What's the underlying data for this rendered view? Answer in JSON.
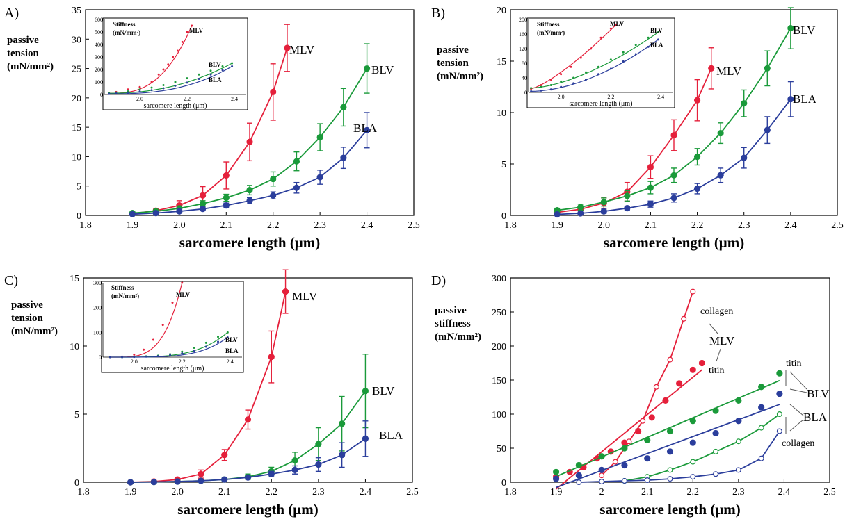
{
  "chart_data": [
    {
      "panel": "A)",
      "type": "scatter",
      "ylabel_lines": [
        "passive",
        "tension",
        "(mN/mm²)"
      ],
      "xlabel": "sarcomere length (μm)",
      "xlim": [
        1.8,
        2.5
      ],
      "ylim": [
        0,
        35
      ],
      "xticks": [
        "1.8",
        "1.9",
        "2.0",
        "2.1",
        "2.2",
        "2.3",
        "2.4",
        "2.5"
      ],
      "yticks": [
        "0",
        "5",
        "10",
        "15",
        "20",
        "25",
        "30",
        "35"
      ],
      "series": [
        {
          "name": "MLV",
          "color": "#e5203b",
          "x": [
            1.9,
            1.95,
            2.0,
            2.05,
            2.1,
            2.15,
            2.2,
            2.23
          ],
          "y": [
            0.3,
            0.8,
            1.7,
            3.4,
            6.8,
            12.5,
            21.0,
            28.5
          ],
          "err": [
            0.2,
            0.4,
            0.8,
            1.5,
            2.3,
            3.2,
            4.8,
            4.0
          ]
        },
        {
          "name": "BLV",
          "color": "#1a9a3a",
          "x": [
            1.9,
            1.95,
            2.0,
            2.05,
            2.1,
            2.15,
            2.2,
            2.25,
            2.3,
            2.35,
            2.4
          ],
          "y": [
            0.4,
            0.7,
            1.2,
            2.0,
            3.0,
            4.3,
            6.2,
            9.2,
            13.3,
            18.4,
            25.0
          ],
          "err": [
            0.2,
            0.3,
            0.4,
            0.5,
            0.6,
            0.8,
            1.2,
            1.6,
            2.3,
            3.2,
            4.2
          ]
        },
        {
          "name": "BLA",
          "color": "#2b3e9c",
          "x": [
            1.9,
            1.95,
            2.0,
            2.05,
            2.1,
            2.15,
            2.2,
            2.25,
            2.3,
            2.35,
            2.4
          ],
          "y": [
            0.2,
            0.4,
            0.7,
            1.1,
            1.7,
            2.5,
            3.4,
            4.7,
            6.5,
            9.8,
            14.5
          ],
          "err": [
            0.1,
            0.1,
            0.2,
            0.3,
            0.4,
            0.5,
            0.6,
            0.9,
            1.2,
            1.8,
            3.0
          ]
        }
      ],
      "inset": {
        "title_lines": [
          "Stiffness",
          "(mN/mm²)"
        ],
        "xlabel": "sarcomere length (μm)",
        "xlim": [
          1.85,
          2.45
        ],
        "ylim": [
          0,
          600
        ],
        "xticks": [
          "2.0",
          "2.2",
          "2.4"
        ],
        "yticks": [
          "0",
          "100",
          "200",
          "300",
          "400",
          "500",
          "600"
        ],
        "series": [
          {
            "name": "MLV",
            "color": "#e5203b",
            "fit_exp": 2.8,
            "x": [
              1.87,
              1.9,
              1.95,
              2.0,
              2.05,
              2.08,
              2.1,
              2.12,
              2.14,
              2.16,
              2.18,
              2.2,
              2.22
            ],
            "y": [
              10,
              20,
              40,
              60,
              100,
              160,
              200,
              240,
              300,
              350,
              420,
              500,
              550
            ]
          },
          {
            "name": "BLV",
            "color": "#1a9a3a",
            "fit_exp": 2.2,
            "x": [
              1.87,
              1.9,
              1.95,
              2.0,
              2.05,
              2.1,
              2.15,
              2.2,
              2.25,
              2.3,
              2.35,
              2.39
            ],
            "y": [
              10,
              15,
              25,
              40,
              55,
              75,
              100,
              130,
              160,
              190,
              225,
              250
            ]
          },
          {
            "name": "BLA",
            "color": "#2b3e9c",
            "fit_exp": 2.6,
            "x": [
              1.87,
              1.9,
              1.95,
              2.0,
              2.05,
              2.1,
              2.15,
              2.2,
              2.25,
              2.3,
              2.35,
              2.39
            ],
            "y": [
              5,
              8,
              15,
              25,
              35,
              50,
              70,
              95,
              125,
              160,
              195,
              225
            ]
          }
        ]
      }
    },
    {
      "panel": "B)",
      "type": "scatter",
      "ylabel_lines": [
        "passive",
        "tension",
        "(mN/mm²)"
      ],
      "xlabel": "sarcomere length (μm)",
      "xlim": [
        1.8,
        2.5
      ],
      "ylim": [
        0,
        20
      ],
      "xticks": [
        "1.8",
        "1.9",
        "2.0",
        "2.1",
        "2.2",
        "2.3",
        "2.4",
        "2.5"
      ],
      "yticks": [
        "0",
        "5",
        "10",
        "15",
        "20"
      ],
      "series": [
        {
          "name": "MLV",
          "color": "#e5203b",
          "x": [
            1.9,
            1.95,
            2.0,
            2.05,
            2.1,
            2.15,
            2.2,
            2.23
          ],
          "y": [
            0.3,
            0.6,
            1.2,
            2.3,
            4.7,
            7.8,
            11.2,
            14.3
          ],
          "err": [
            0.2,
            0.3,
            0.5,
            0.9,
            1.1,
            1.5,
            2.0,
            2.0
          ]
        },
        {
          "name": "BLV",
          "color": "#1a9a3a",
          "x": [
            1.9,
            1.95,
            2.0,
            2.05,
            2.1,
            2.15,
            2.2,
            2.25,
            2.3,
            2.35,
            2.4
          ],
          "y": [
            0.5,
            0.8,
            1.3,
            1.9,
            2.7,
            3.9,
            5.7,
            8.0,
            10.9,
            14.3,
            18.2
          ],
          "err": [
            0.2,
            0.3,
            0.4,
            0.5,
            0.6,
            0.7,
            0.8,
            1.0,
            1.3,
            1.7,
            2.0
          ]
        },
        {
          "name": "BLA",
          "color": "#2b3e9c",
          "x": [
            1.9,
            1.95,
            2.0,
            2.05,
            2.1,
            2.15,
            2.2,
            2.25,
            2.3,
            2.35,
            2.4
          ],
          "y": [
            0.1,
            0.2,
            0.4,
            0.7,
            1.1,
            1.7,
            2.6,
            3.9,
            5.6,
            8.3,
            11.3
          ],
          "err": [
            0.1,
            0.1,
            0.2,
            0.2,
            0.3,
            0.4,
            0.5,
            0.7,
            1.0,
            1.3,
            1.7
          ]
        }
      ],
      "inset": {
        "title_lines": [
          "Stiffness",
          "(mN/mm²)"
        ],
        "xlabel": "sarcomere length (μm)",
        "xlim": [
          1.87,
          2.45
        ],
        "ylim": [
          0,
          200
        ],
        "xticks": [
          "2.0",
          "2.2",
          "2.4"
        ],
        "yticks": [
          "0",
          "40",
          "80",
          "120",
          "160",
          "200"
        ],
        "series": [
          {
            "name": "MLV",
            "color": "#e5203b",
            "fit_exp": 1.3,
            "x": [
              1.88,
              1.92,
              1.96,
              2.0,
              2.04,
              2.08,
              2.12,
              2.16,
              2.2,
              2.22
            ],
            "y": [
              10,
              20,
              35,
              50,
              70,
              95,
              120,
              150,
              175,
              185
            ]
          },
          {
            "name": "BLV",
            "color": "#1a9a3a",
            "fit_exp": 1.6,
            "x": [
              1.88,
              1.92,
              1.96,
              2.0,
              2.05,
              2.1,
              2.15,
              2.2,
              2.25,
              2.3,
              2.35,
              2.39
            ],
            "y": [
              12,
              15,
              20,
              30,
              40,
              55,
              70,
              90,
              110,
              130,
              150,
              165
            ]
          },
          {
            "name": "BLA",
            "color": "#2b3e9c",
            "fit_exp": 1.8,
            "x": [
              1.88,
              1.92,
              1.96,
              2.0,
              2.05,
              2.1,
              2.15,
              2.2,
              2.25,
              2.3,
              2.35,
              2.39
            ],
            "y": [
              3,
              5,
              8,
              15,
              25,
              35,
              50,
              65,
              85,
              105,
              125,
              145
            ]
          }
        ]
      }
    },
    {
      "panel": "C)",
      "type": "scatter",
      "ylabel_lines": [
        "passive",
        "tension",
        "(mN/mm²)"
      ],
      "xlabel": "sarcomere length (μm)",
      "xlim": [
        1.8,
        2.5
      ],
      "ylim": [
        0,
        15
      ],
      "xticks": [
        "1.8",
        "1.9",
        "2.0",
        "2.1",
        "2.2",
        "2.3",
        "2.4",
        "2.5"
      ],
      "yticks": [
        "0",
        "5",
        "10",
        "15"
      ],
      "series": [
        {
          "name": "MLV",
          "color": "#e5203b",
          "x": [
            1.9,
            1.95,
            2.0,
            2.05,
            2.1,
            2.15,
            2.2,
            2.23
          ],
          "y": [
            0.0,
            0.05,
            0.2,
            0.6,
            2.0,
            4.6,
            9.2,
            14.0
          ],
          "err": [
            0.0,
            0.05,
            0.1,
            0.3,
            0.4,
            0.7,
            1.9,
            1.6
          ]
        },
        {
          "name": "BLV",
          "color": "#1a9a3a",
          "x": [
            1.9,
            1.95,
            2.0,
            2.05,
            2.1,
            2.15,
            2.2,
            2.25,
            2.3,
            2.35,
            2.4
          ],
          "y": [
            0.0,
            0.02,
            0.05,
            0.1,
            0.2,
            0.4,
            0.8,
            1.6,
            2.8,
            4.3,
            6.7
          ],
          "err": [
            0.0,
            0.0,
            0.05,
            0.05,
            0.1,
            0.2,
            0.3,
            0.6,
            1.2,
            2.0,
            2.7
          ]
        },
        {
          "name": "BLA",
          "color": "#2b3e9c",
          "x": [
            1.9,
            1.95,
            2.0,
            2.05,
            2.1,
            2.15,
            2.2,
            2.25,
            2.3,
            2.35,
            2.4
          ],
          "y": [
            0.0,
            0.02,
            0.05,
            0.1,
            0.2,
            0.35,
            0.6,
            0.9,
            1.3,
            2.0,
            3.2
          ],
          "err": [
            0.0,
            0.0,
            0.02,
            0.05,
            0.1,
            0.1,
            0.2,
            0.3,
            0.5,
            0.9,
            1.3
          ]
        }
      ],
      "inset": {
        "title_lines": [
          "Stiffness",
          "(mN/mm²)"
        ],
        "xlabel": "sarcomere length (μm)",
        "xlim": [
          1.87,
          2.45
        ],
        "ylim": [
          0,
          300
        ],
        "xticks": [
          "2.0",
          "2.2",
          "2.4"
        ],
        "yticks": [
          "0",
          "100",
          "200",
          "300"
        ],
        "series": [
          {
            "name": "MLV",
            "color": "#e5203b",
            "fit_exp": 4.0,
            "x": [
              1.9,
              1.95,
              2.0,
              2.04,
              2.08,
              2.12,
              2.16,
              2.2
            ],
            "y": [
              0,
              2,
              10,
              30,
              70,
              130,
              220,
              300
            ]
          },
          {
            "name": "BLV",
            "color": "#1a9a3a",
            "fit_exp": 4.0,
            "x": [
              1.9,
              1.95,
              2.0,
              2.05,
              2.1,
              2.15,
              2.2,
              2.25,
              2.3,
              2.35,
              2.39
            ],
            "y": [
              0,
              0,
              1,
              3,
              6,
              12,
              22,
              38,
              58,
              82,
              100
            ]
          },
          {
            "name": "BLA",
            "color": "#2b3e9c",
            "fit_exp": 4.5,
            "x": [
              1.9,
              1.95,
              2.0,
              2.05,
              2.1,
              2.15,
              2.2,
              2.25,
              2.3,
              2.35,
              2.39
            ],
            "y": [
              0,
              0,
              1,
              2,
              4,
              8,
              15,
              26,
              42,
              62,
              80
            ]
          }
        ]
      }
    },
    {
      "panel": "D)",
      "type": "scatter",
      "ylabel_lines": [
        "passive",
        "stiffness",
        "(mN/mm²)"
      ],
      "xlabel": "sarcomere length (μm)",
      "xlim": [
        1.8,
        2.5
      ],
      "ylim": [
        0,
        300
      ],
      "xticks": [
        "1.8",
        "1.9",
        "2",
        "2.1",
        "2.2",
        "2.3",
        "2.4",
        "2.5"
      ],
      "yticks": [
        "0",
        "50",
        "100",
        "150",
        "200",
        "250",
        "300"
      ],
      "series": [
        {
          "name": "MLV titin",
          "color": "#e5203b",
          "fill": "filled",
          "fit": "linear",
          "x": [
            1.9,
            1.93,
            1.96,
            1.99,
            2.02,
            2.05,
            2.08,
            2.11,
            2.14,
            2.17,
            2.2,
            2.22
          ],
          "y": [
            8,
            15,
            22,
            35,
            45,
            58,
            75,
            95,
            120,
            145,
            165,
            175
          ]
        },
        {
          "name": "MLV collagen",
          "color": "#e5203b",
          "fill": "open",
          "fit": "exp",
          "x": [
            2.0,
            2.03,
            2.06,
            2.09,
            2.12,
            2.15,
            2.18,
            2.2
          ],
          "y": [
            10,
            30,
            60,
            90,
            140,
            180,
            240,
            280
          ]
        },
        {
          "name": "BLV titin",
          "color": "#1a9a3a",
          "fill": "filled",
          "fit": "linear",
          "x": [
            1.9,
            1.95,
            2.0,
            2.05,
            2.1,
            2.15,
            2.2,
            2.25,
            2.3,
            2.35,
            2.39
          ],
          "y": [
            15,
            25,
            38,
            50,
            62,
            75,
            90,
            105,
            120,
            140,
            160
          ]
        },
        {
          "name": "BLV collagen",
          "color": "#1a9a3a",
          "fill": "open",
          "fit": "exp",
          "x": [
            2.05,
            2.1,
            2.15,
            2.2,
            2.25,
            2.3,
            2.35,
            2.39
          ],
          "y": [
            2,
            8,
            18,
            30,
            45,
            60,
            80,
            100
          ]
        },
        {
          "name": "BLA titin",
          "color": "#2b3e9c",
          "fill": "filled",
          "fit": "linear",
          "x": [
            1.9,
            1.95,
            2.0,
            2.05,
            2.1,
            2.15,
            2.2,
            2.25,
            2.3,
            2.35,
            2.39
          ],
          "y": [
            5,
            10,
            18,
            25,
            35,
            45,
            58,
            72,
            90,
            110,
            130
          ]
        },
        {
          "name": "BLA collagen",
          "color": "#2b3e9c",
          "fill": "open",
          "fit": "exp",
          "x": [
            1.95,
            2.0,
            2.05,
            2.1,
            2.15,
            2.2,
            2.25,
            2.3,
            2.35,
            2.39
          ],
          "y": [
            0,
            1,
            2,
            3,
            5,
            8,
            12,
            18,
            35,
            75
          ]
        }
      ]
    }
  ],
  "labels": {
    "a": {
      "mlv": "MLV",
      "blv": "BLV",
      "bla": "BLA",
      "inset_mlv": "MLV",
      "inset_blv": "BLV",
      "inset_bla": "BLA"
    },
    "b": {
      "mlv": "MLV",
      "blv": "BLV",
      "bla": "BLA",
      "inset_mlv": "MLV",
      "inset_blv": "BLV",
      "inset_bla": "BLA"
    },
    "c": {
      "mlv": "MLV",
      "blv": "BLV",
      "bla": "BLA",
      "inset_mlv": "MLV",
      "inset_blv": "BLV",
      "inset_bla": "BLA"
    },
    "d": {
      "collagen_top": "collagen",
      "mlv": "MLV",
      "titin_red": "titin",
      "titin_right": "titin",
      "blv": "BLV",
      "bla": "BLA",
      "collagen_bottom": "collagen"
    }
  }
}
